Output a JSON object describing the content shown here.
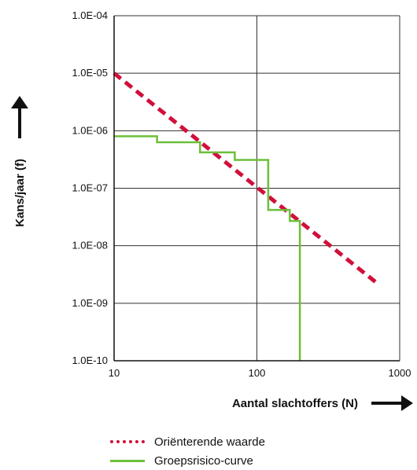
{
  "chart_data": {
    "type": "line",
    "x_scale": "log",
    "y_scale": "log",
    "xlim": [
      10,
      1000
    ],
    "ylim": [
      1e-10,
      0.0001
    ],
    "grid": true,
    "x_tick_values": [
      10,
      100,
      1000
    ],
    "x_tick_labels": [
      "10",
      "100",
      "1000"
    ],
    "y_tick_values": [
      0.0001,
      1e-05,
      1e-06,
      1e-07,
      1e-08,
      1e-09,
      1e-10
    ],
    "y_tick_labels": [
      "1.0E-04",
      "1.0E-05",
      "1.0E-06",
      "1.0E-07",
      "1.0E-08",
      "1.0E-09",
      "1.0E-10"
    ],
    "xlabel": "Aantal slachtoffers (N)",
    "ylabel": "Kans/jaar (f)",
    "legend_placement": "bottom",
    "series": [
      {
        "name": "Oriënterende waarde",
        "style": "dashed",
        "color": "#d0103a",
        "points": [
          [
            10,
            1e-05
          ],
          [
            700,
            2.2e-09
          ]
        ]
      },
      {
        "name": "Groepsrisico-curve",
        "style": "step",
        "color": "#6bbf3a",
        "points": [
          [
            10,
            8e-07
          ],
          [
            20,
            8e-07
          ],
          [
            20,
            6.3e-07
          ],
          [
            40,
            6.3e-07
          ],
          [
            40,
            4.2e-07
          ],
          [
            70,
            4.2e-07
          ],
          [
            70,
            3.1e-07
          ],
          [
            120,
            3.1e-07
          ],
          [
            120,
            4.2e-08
          ],
          [
            170,
            4.2e-08
          ],
          [
            170,
            2.7e-08
          ],
          [
            200,
            2.7e-08
          ],
          [
            200,
            1e-10
          ]
        ]
      }
    ]
  }
}
